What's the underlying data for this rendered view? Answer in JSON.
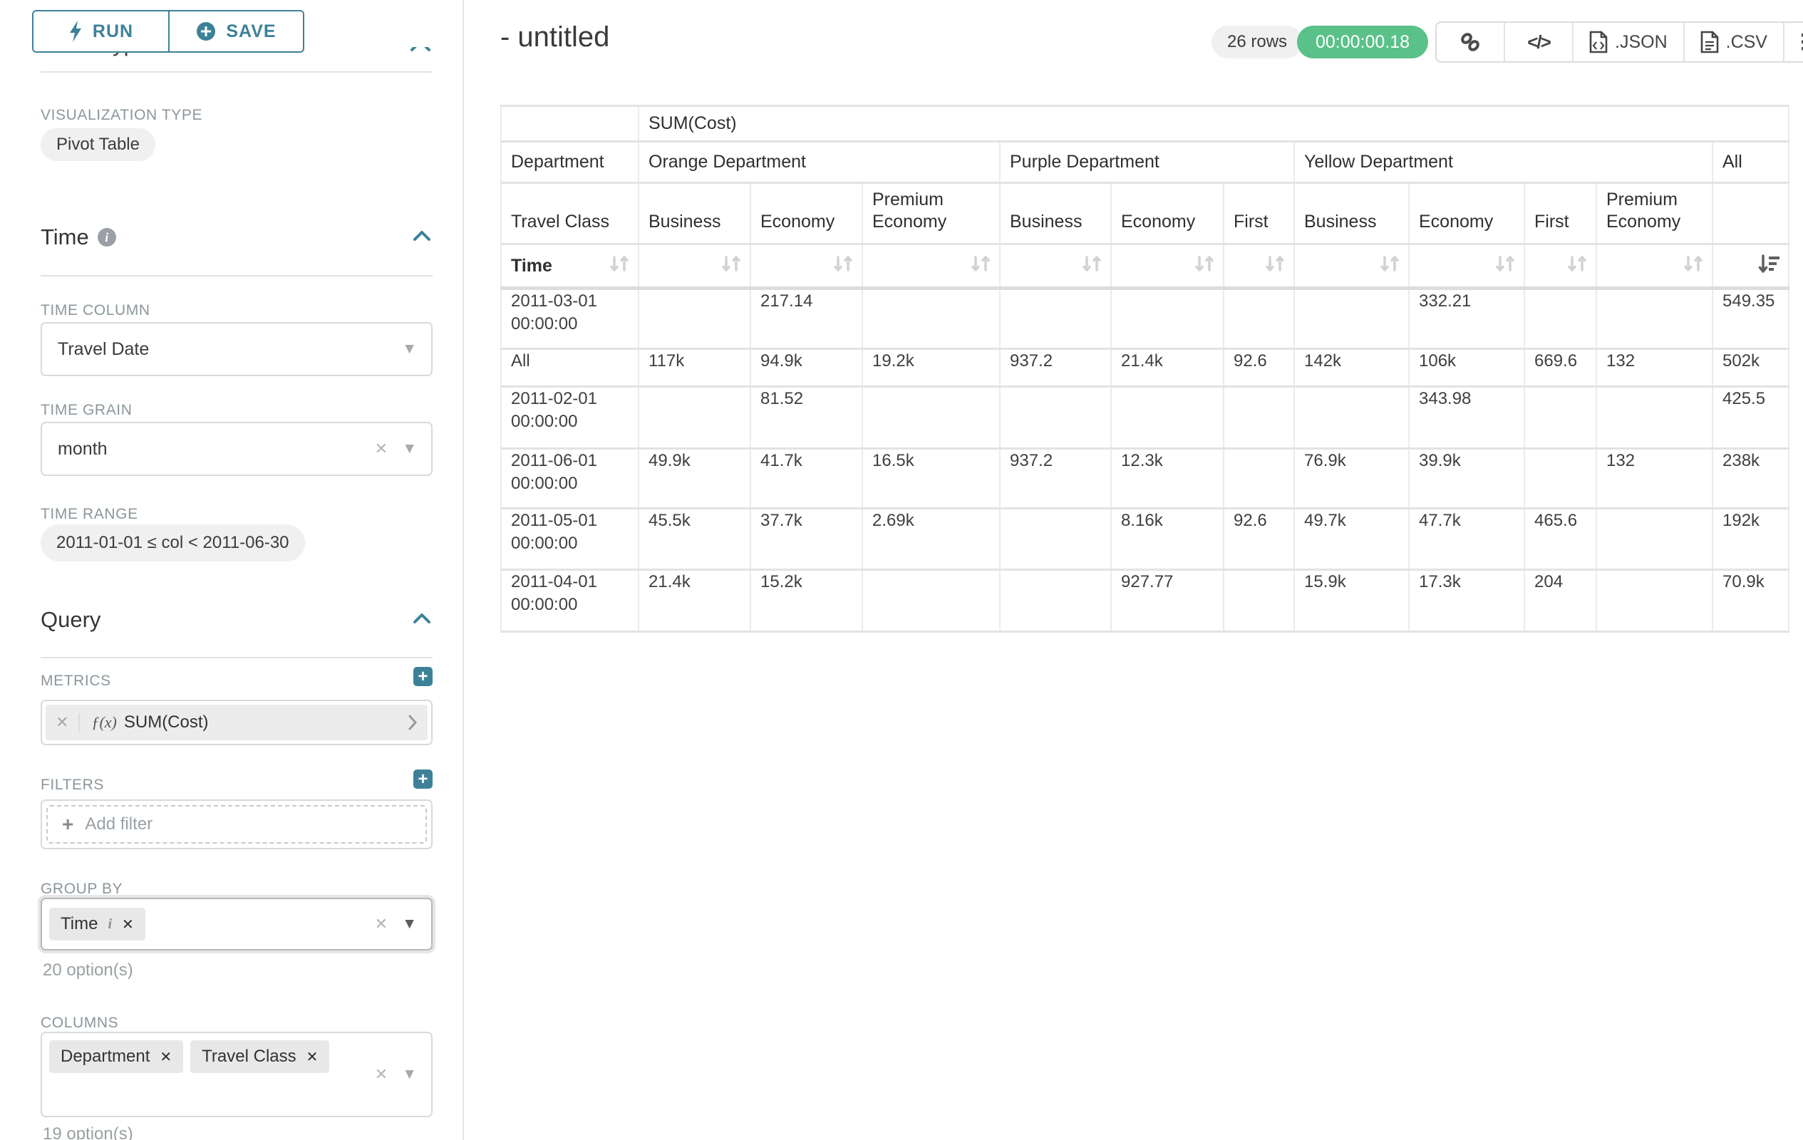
{
  "colors": {
    "accent": "#3d8199",
    "success_green": "#5ac189",
    "pill_gray": "#f0f0f0",
    "chip_gray": "#e8e8e8"
  },
  "sidebar": {
    "run_label": "RUN",
    "save_label": "SAVE",
    "chart_type_heading": "Chart Type",
    "viz_type_label": "VISUALIZATION TYPE",
    "viz_type_value": "Pivot Table",
    "time": {
      "header": "Time",
      "info_glyph": "i",
      "time_column_label": "TIME COLUMN",
      "time_column_value": "Travel Date",
      "time_grain_label": "TIME GRAIN",
      "time_grain_value": "month",
      "time_range_label": "TIME RANGE",
      "time_range_value": "2011-01-01 ≤ col < 2011-06-30"
    },
    "query": {
      "header": "Query",
      "metrics_label": "METRICS",
      "metric_fx": "ƒ(x)",
      "metric_name": "SUM(Cost)",
      "filters_label": "FILTERS",
      "add_filter_label": "Add filter",
      "group_by_label": "GROUP BY",
      "group_by_chip": "Time",
      "group_by_options": "20 option(s)",
      "columns_label": "COLUMNS",
      "columns_chips": [
        "Department",
        "Travel Class"
      ],
      "columns_options": "19 option(s)"
    }
  },
  "header": {
    "title": "- untitled",
    "row_count": "26 rows",
    "timer": "00:00:00.18",
    "json_label": ".JSON",
    "csv_label": ".CSV"
  },
  "chart_data": {
    "type": "table",
    "title": "SUM(Cost)",
    "metric_header": "SUM(Cost)",
    "row_dimension_label": "Department",
    "row_dimension2_label": "Travel Class",
    "row_axis_label": "Time",
    "column_groups": [
      {
        "label": "Orange Department",
        "children": [
          "Business",
          "Economy",
          "Premium Economy"
        ]
      },
      {
        "label": "Purple Department",
        "children": [
          "Business",
          "Economy",
          "First"
        ]
      },
      {
        "label": "Yellow Department",
        "children": [
          "Business",
          "Economy",
          "First",
          "Premium Economy"
        ]
      },
      {
        "label": "All",
        "children": [
          ""
        ]
      }
    ],
    "rows": [
      {
        "label": "2011-03-01 00:00:00",
        "values": [
          "",
          "217.14",
          "",
          "",
          "",
          "",
          "",
          "332.21",
          "",
          "",
          "549.35"
        ]
      },
      {
        "label": "All",
        "values": [
          "117k",
          "94.9k",
          "19.2k",
          "937.2",
          "21.4k",
          "92.6",
          "142k",
          "106k",
          "669.6",
          "132",
          "502k"
        ]
      },
      {
        "label": "2011-02-01 00:00:00",
        "values": [
          "",
          "81.52",
          "",
          "",
          "",
          "",
          "",
          "343.98",
          "",
          "",
          "425.5"
        ]
      },
      {
        "label": "2011-06-01 00:00:00",
        "values": [
          "49.9k",
          "41.7k",
          "16.5k",
          "937.2",
          "12.3k",
          "",
          "76.9k",
          "39.9k",
          "",
          "132",
          "238k"
        ]
      },
      {
        "label": "2011-05-01 00:00:00",
        "values": [
          "45.5k",
          "37.7k",
          "2.69k",
          "",
          "8.16k",
          "92.6",
          "49.7k",
          "47.7k",
          "465.6",
          "",
          "192k"
        ]
      },
      {
        "label": "2011-04-01 00:00:00",
        "values": [
          "21.4k",
          "15.2k",
          "",
          "",
          "927.77",
          "",
          "15.9k",
          "17.3k",
          "204",
          "",
          "70.9k"
        ]
      }
    ],
    "sort": {
      "column": "All",
      "direction": "desc"
    }
  }
}
